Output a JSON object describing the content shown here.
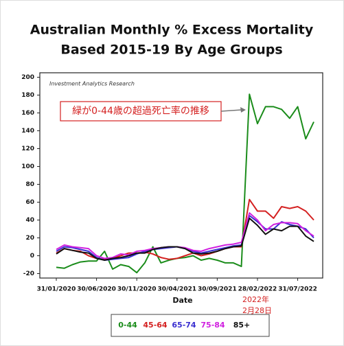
{
  "chart_data": {
    "type": "line",
    "title": "Australian Monthly % Excess Mortality",
    "subtitle": "Based 2015-19 By Age Groups",
    "source": "Investment Analytics Research",
    "note": "緑が0-44歳の超過死亡率の推移",
    "date_note": [
      "2022年",
      "2月28日"
    ],
    "xlabel": "Date",
    "categories": [
      "31/01/2020",
      null,
      null,
      null,
      null,
      "30/06/2020",
      null,
      null,
      null,
      null,
      "30/11/2020",
      null,
      null,
      null,
      null,
      "30/04/2021",
      null,
      null,
      null,
      null,
      "30/09/2021",
      null,
      null,
      null,
      null,
      "28/02/2022",
      null,
      null,
      null,
      null,
      "31/07/2022",
      null,
      null
    ],
    "series": [
      {
        "name": "0-44",
        "color": "#1a8c1a",
        "values": [
          -13,
          -14,
          -10,
          -7,
          -6,
          -6,
          5,
          -15,
          -10,
          -12,
          -19,
          -8,
          10,
          -8,
          -5,
          -3,
          -2,
          0,
          -5,
          -3,
          -5,
          -8,
          -8,
          -12,
          181,
          148,
          167,
          167,
          164,
          154,
          167,
          131,
          150
        ]
      },
      {
        "name": "45-64",
        "color": "#d42020",
        "values": [
          3,
          8,
          6,
          5,
          0,
          -3,
          -4,
          -3,
          0,
          3,
          3,
          4,
          2,
          -2,
          -4,
          -3,
          0,
          3,
          0,
          2,
          5,
          8,
          10,
          10,
          63,
          50,
          50,
          42,
          55,
          53,
          55,
          50,
          40
        ]
      },
      {
        "name": "65-74",
        "color": "#3a2fd0",
        "values": [
          5,
          10,
          9,
          7,
          5,
          -2,
          -5,
          -4,
          -3,
          -2,
          2,
          5,
          7,
          8,
          9,
          10,
          8,
          5,
          3,
          5,
          7,
          9,
          11,
          12,
          45,
          38,
          30,
          30,
          38,
          35,
          33,
          30,
          20
        ]
      },
      {
        "name": "75-84",
        "color": "#d020e0",
        "values": [
          7,
          12,
          10,
          9,
          8,
          0,
          -3,
          -2,
          2,
          1,
          5,
          6,
          8,
          9,
          10,
          10,
          9,
          6,
          5,
          8,
          10,
          12,
          13,
          15,
          48,
          40,
          28,
          35,
          37,
          37,
          36,
          28,
          22
        ]
      },
      {
        "name": "85+",
        "color": "#111111",
        "values": [
          2,
          8,
          6,
          4,
          3,
          -3,
          -5,
          -3,
          -2,
          0,
          3,
          3,
          7,
          9,
          10,
          10,
          8,
          3,
          2,
          3,
          5,
          8,
          10,
          11,
          42,
          34,
          24,
          30,
          28,
          33,
          33,
          22,
          16
        ]
      }
    ],
    "ylim": [
      -25,
      205
    ],
    "yticks": [
      -20,
      0,
      20,
      40,
      60,
      80,
      100,
      120,
      140,
      160,
      180,
      200
    ],
    "grid": false
  }
}
